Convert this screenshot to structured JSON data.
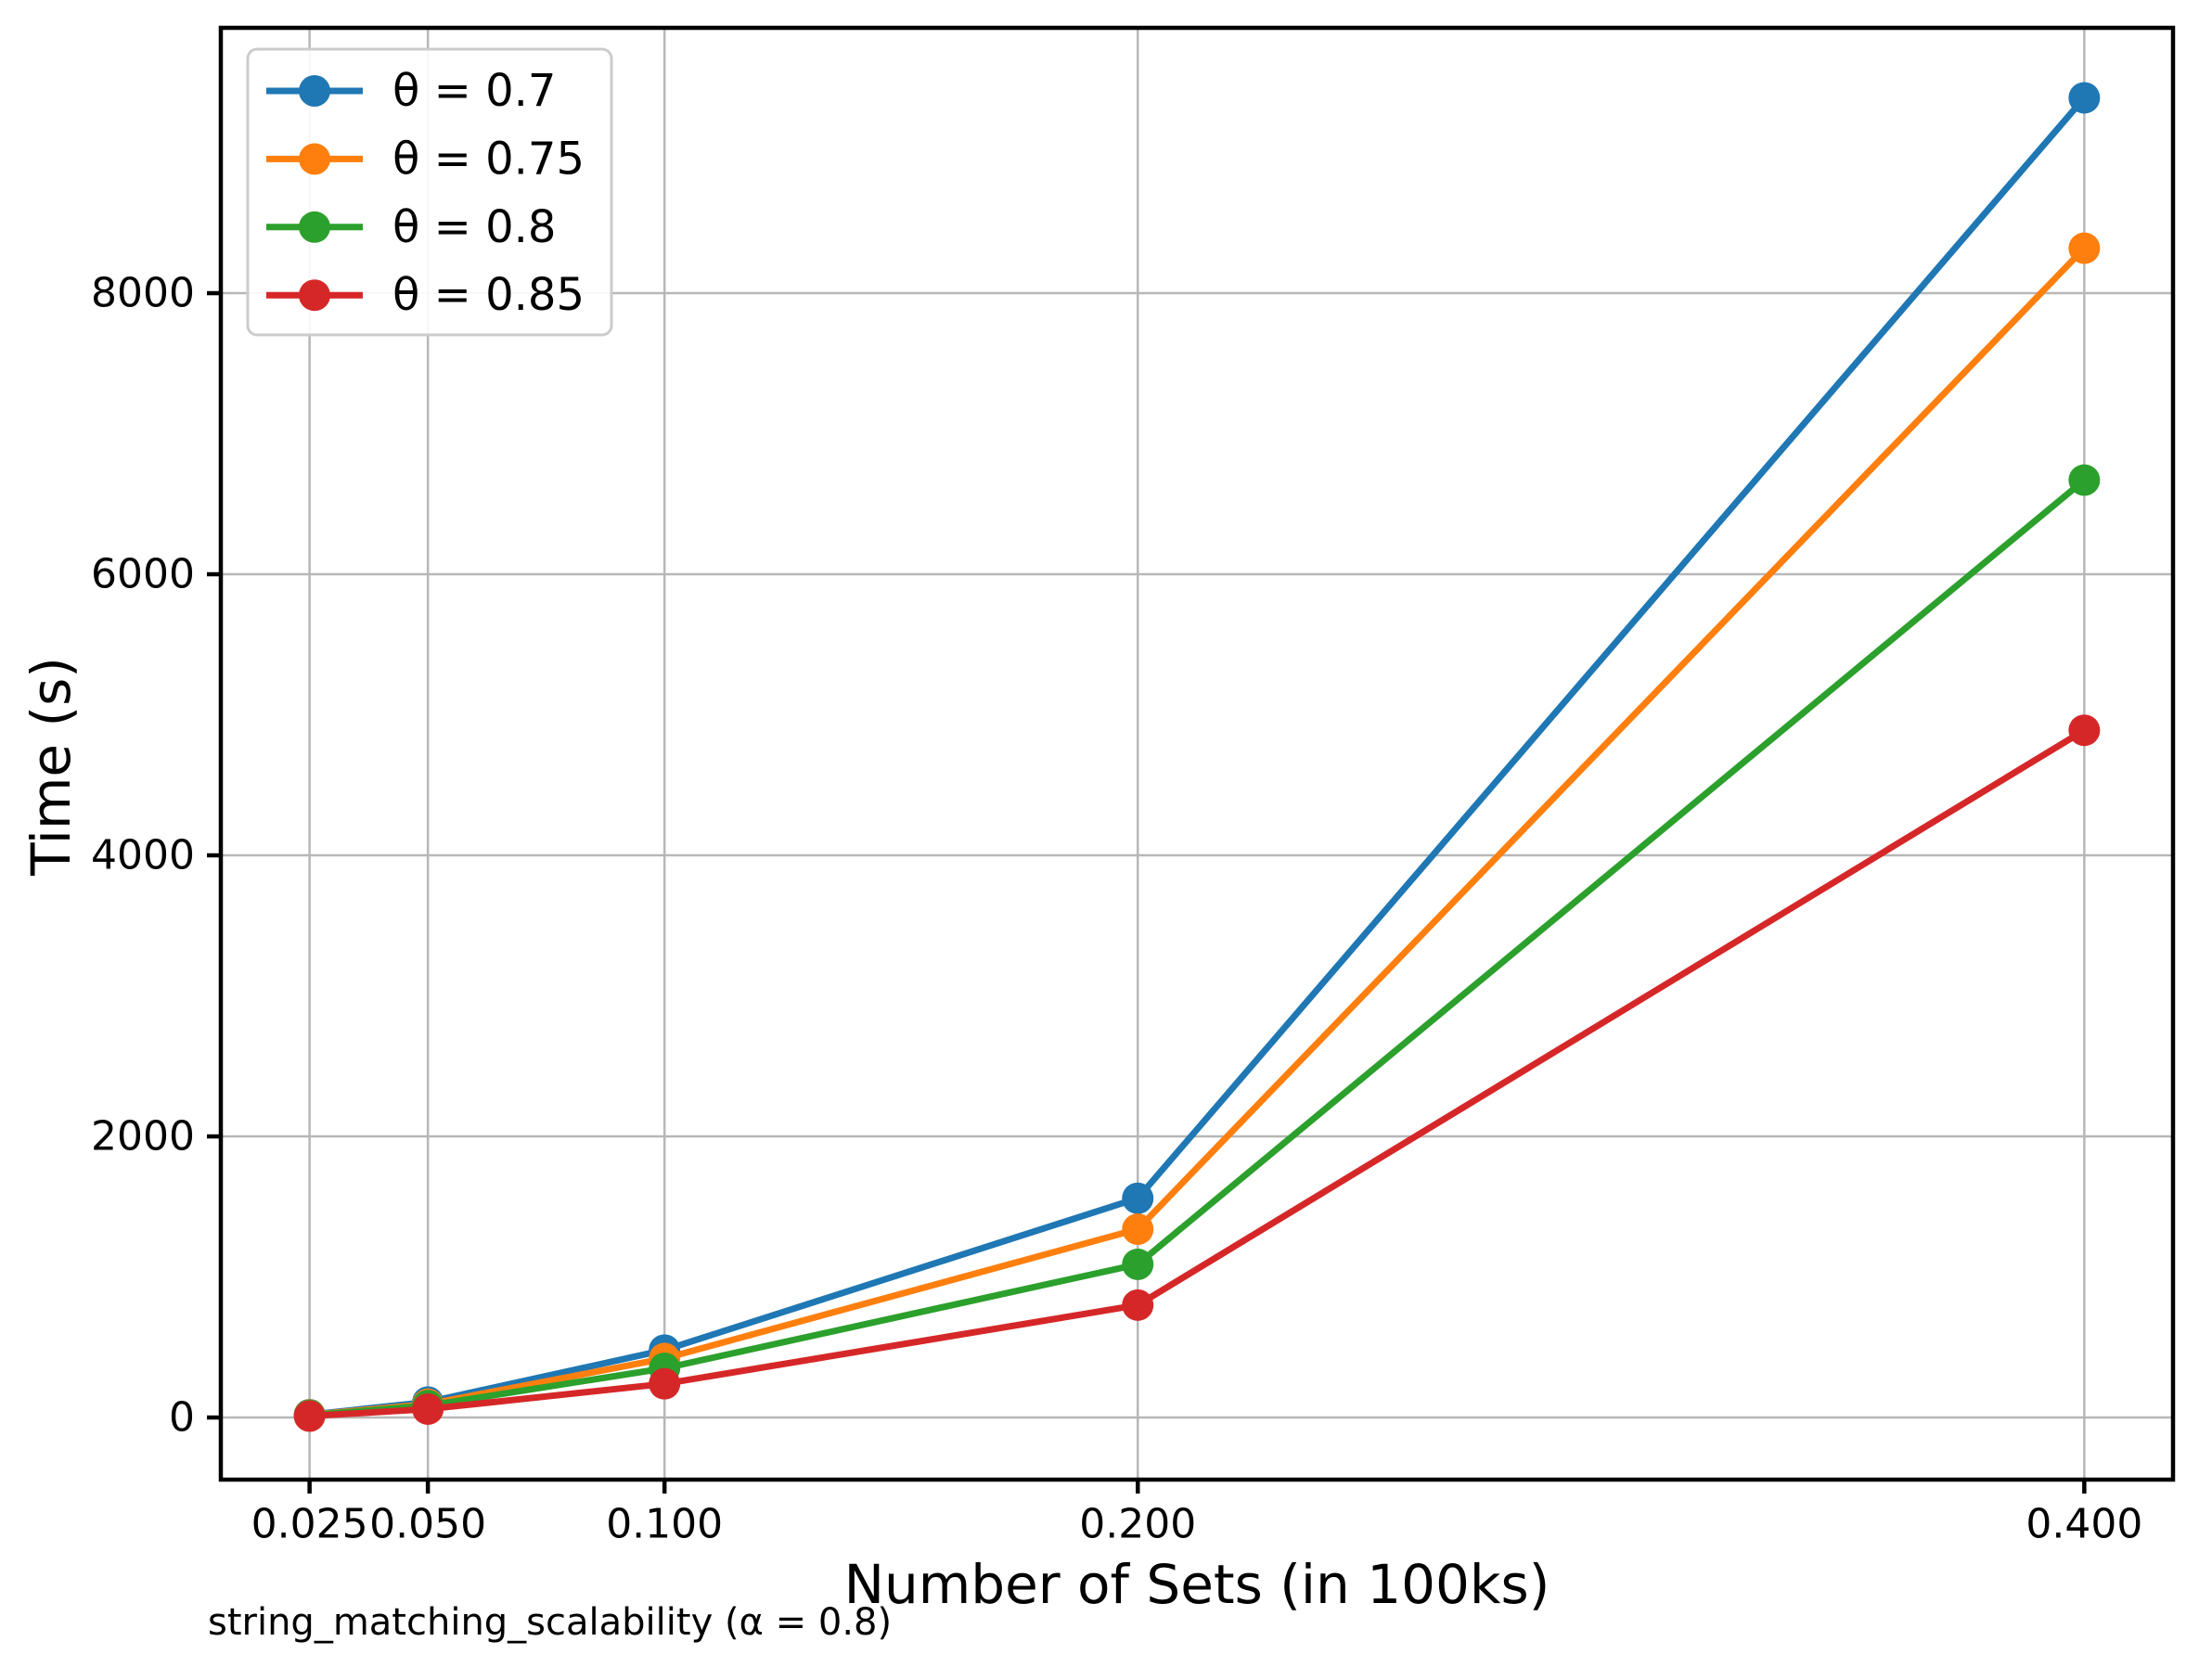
{
  "figure": {
    "background": "#ffffff",
    "caption": "string_matching_scalability (α = 0.8)"
  },
  "chart_data": {
    "type": "line",
    "title": "",
    "xlabel": "Number of Sets (in 100ks)",
    "ylabel": "Time (s)",
    "x": [
      0.025,
      0.05,
      0.1,
      0.2,
      0.4
    ],
    "x_tick_labels": [
      "0.025",
      "0.050",
      "0.100",
      "0.200",
      "0.400"
    ],
    "y_ticks": [
      0,
      2000,
      4000,
      6000,
      8000
    ],
    "y_tick_labels": [
      "0",
      "2000",
      "4000",
      "6000",
      "8000"
    ],
    "xlim": [
      0.00625,
      0.41875
    ],
    "ylim": [
      -442,
      9888
    ],
    "grid": true,
    "grid_color": "#b7b7b7",
    "spine_color": "#000000",
    "legend_position": "upper left",
    "legend_edge_color": "#cccccc",
    "series": [
      {
        "name": "θ = 0.7",
        "color": "#1f77b4",
        "values": [
          20,
          110,
          480,
          1560,
          9390
        ]
      },
      {
        "name": "θ = 0.75",
        "color": "#ff7f0e",
        "values": [
          18,
          95,
          420,
          1340,
          8320
        ]
      },
      {
        "name": "θ = 0.8",
        "color": "#2ca02c",
        "values": [
          15,
          85,
          350,
          1090,
          6670
        ]
      },
      {
        "name": "θ = 0.85",
        "color": "#d62728",
        "values": [
          10,
          60,
          240,
          800,
          4890
        ]
      }
    ]
  }
}
